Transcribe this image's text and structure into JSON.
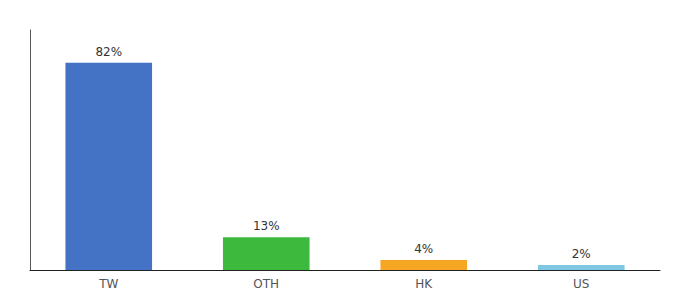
{
  "chart_data": {
    "type": "bar",
    "categories": [
      "TW",
      "OTH",
      "HK",
      "US"
    ],
    "values": [
      82,
      13,
      4,
      2
    ],
    "value_labels": [
      "82%",
      "13%",
      "4%",
      "2%"
    ],
    "colors": [
      "#4472c4",
      "#3dba3d",
      "#f5a623",
      "#7ec8e3"
    ],
    "ylim": [
      0,
      95
    ],
    "grid": false,
    "data_labels": true,
    "tick_labels": "x"
  }
}
